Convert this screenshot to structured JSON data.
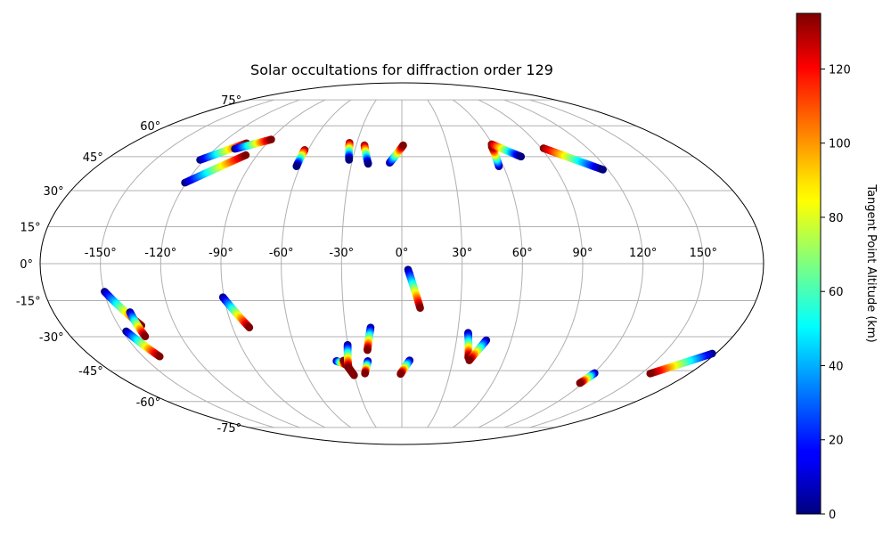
{
  "chart_data": {
    "type": "scatter",
    "projection": "Mollweide",
    "title": "Solar occultations for diffraction order 129",
    "xlabel": "",
    "ylabel": "",
    "lon_ticks": [
      -150,
      -120,
      -90,
      -60,
      -30,
      0,
      30,
      60,
      90,
      120,
      150
    ],
    "lon_tick_labels": [
      "-150°",
      "-120°",
      "-90°",
      "-60°",
      "-30°",
      "0°",
      "30°",
      "60°",
      "90°",
      "120°",
      "150°"
    ],
    "lat_ticks": [
      75,
      60,
      45,
      30,
      15,
      0,
      -15,
      -30,
      -45,
      -60,
      -75
    ],
    "lat_tick_labels": [
      "75°",
      "60°",
      "45°",
      "30°",
      "15°",
      "0°",
      "-15°",
      "-30°",
      "-45°",
      "-60°",
      "-75°"
    ],
    "grid": true,
    "colormap": "jet",
    "colorbar": {
      "label": "Tangent Point Altitude (km)",
      "range": [
        0,
        135
      ],
      "ticks": [
        0,
        20,
        40,
        60,
        80,
        100,
        120
      ],
      "tick_labels": [
        "0",
        "20",
        "40",
        "60",
        "80",
        "100",
        "120"
      ],
      "placement": "right"
    },
    "tracks": [
      {
        "start": [
          -122.6,
          43.5
        ],
        "end": [
          -103.6,
          51.3
        ],
        "alt_range": [
          0,
          135
        ]
      },
      {
        "start": [
          -107.5,
          48.6
        ],
        "end": [
          -89.4,
          53.1
        ],
        "alt_range": [
          0,
          135
        ]
      },
      {
        "start": [
          -120.7,
          33.4
        ],
        "end": [
          -97.1,
          45.7
        ],
        "alt_range": [
          0,
          135
        ]
      },
      {
        "start": [
          -62.2,
          48.1
        ],
        "end": [
          -62.2,
          40.6
        ],
        "alt_range": [
          135,
          0
        ]
      },
      {
        "start": [
          -35.0,
          51.5
        ],
        "end": [
          -32.1,
          43.5
        ],
        "alt_range": [
          135,
          0
        ]
      },
      {
        "start": [
          -24.6,
          50.3
        ],
        "end": [
          -20.1,
          41.7
        ],
        "alt_range": [
          135,
          0
        ]
      },
      {
        "start": [
          -7.3,
          42.2
        ],
        "end": [
          0.9,
          50.3
        ],
        "alt_range": [
          0,
          135
        ]
      },
      {
        "start": [
          57.3,
          40.6
        ],
        "end": [
          58.8,
          49.8
        ],
        "alt_range": [
          0,
          135
        ]
      },
      {
        "start": [
          59.5,
          50.8
        ],
        "end": [
          73.6,
          45.0
        ],
        "alt_range": [
          135,
          0
        ]
      },
      {
        "start": [
          91.6,
          48.9
        ],
        "end": [
          117.1,
          39.1
        ],
        "alt_range": [
          135,
          0
        ]
      },
      {
        "start": [
          3.1,
          -2.4
        ],
        "end": [
          9.4,
          -18.0
        ],
        "alt_range": [
          0,
          135
        ]
      },
      {
        "start": [
          -149.7,
          -11.3
        ],
        "end": [
          -137.9,
          -25.3
        ],
        "alt_range": [
          0,
          135
        ]
      },
      {
        "start": [
          -140.4,
          -19.7
        ],
        "end": [
          -139.5,
          -29.9
        ],
        "alt_range": [
          0,
          135
        ]
      },
      {
        "start": [
          -147.9,
          -27.7
        ],
        "end": [
          -140.4,
          -38.6
        ],
        "alt_range": [
          0,
          135
        ]
      },
      {
        "start": [
          -90.6,
          -13.6
        ],
        "end": [
          -81.1,
          -26.1
        ],
        "alt_range": [
          0,
          135
        ]
      },
      {
        "start": [
          -38.6,
          -40.6
        ],
        "end": [
          -33.2,
          -42.3
        ],
        "alt_range": [
          0,
          135
        ]
      },
      {
        "start": [
          -34.4,
          -40.4
        ],
        "end": [
          -30.2,
          -47.1
        ],
        "alt_range": [
          135,
          135
        ]
      },
      {
        "start": [
          -30.2,
          -33.5
        ],
        "end": [
          -32.5,
          -43.5
        ],
        "alt_range": [
          0,
          135
        ]
      },
      {
        "start": [
          -16.6,
          -26.1
        ],
        "end": [
          -19.5,
          -35.8
        ],
        "alt_range": [
          0,
          135
        ]
      },
      {
        "start": [
          -20.1,
          -40.6
        ],
        "end": [
          -23.1,
          -46.3
        ],
        "alt_range": [
          0,
          135
        ]
      },
      {
        "start": [
          4.6,
          -40.3
        ],
        "end": [
          -0.8,
          -46.5
        ],
        "alt_range": [
          0,
          135
        ]
      },
      {
        "start": [
          35.7,
          -28.3
        ],
        "end": [
          38.7,
          -39.1
        ],
        "alt_range": [
          0,
          135
        ]
      },
      {
        "start": [
          46.4,
          -31.5
        ],
        "end": [
          39.7,
          -40.3
        ],
        "alt_range": [
          0,
          135
        ]
      },
      {
        "start": [
          120.5,
          -46.1
        ],
        "end": [
          118.0,
          -50.8
        ],
        "alt_range": [
          0,
          135
        ]
      },
      {
        "start": [
          178.0,
          -37.3
        ],
        "end": [
          155.6,
          -46.3
        ],
        "alt_range": [
          0,
          135
        ]
      }
    ]
  }
}
